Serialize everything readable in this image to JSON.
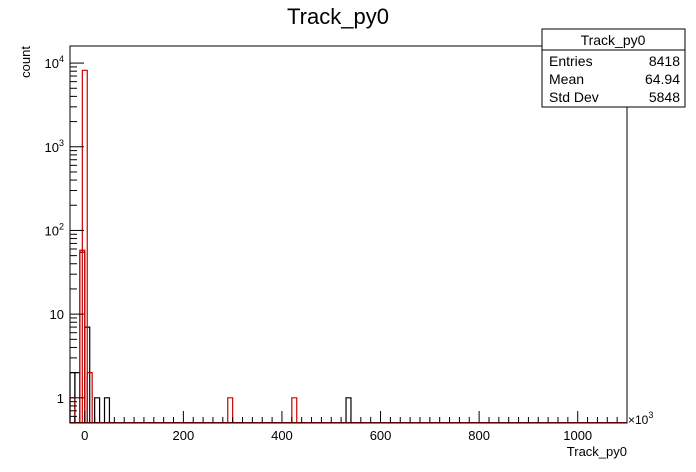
{
  "chart_data": {
    "type": "histogram",
    "title": "Track_py0",
    "xlabel": "Track_py0",
    "ylabel": "count",
    "x_multiplier": "×10",
    "x_multiplier_exp": "3",
    "xlim": [
      -30,
      1100
    ],
    "ylim": [
      0.5,
      16000
    ],
    "yscale": "log",
    "x_ticks": [
      0,
      200,
      400,
      600,
      800,
      1000
    ],
    "y_ticks": [
      {
        "value": 1,
        "label": "1",
        "exp": ""
      },
      {
        "value": 10,
        "label": "10",
        "exp": ""
      },
      {
        "value": 100,
        "label": "10",
        "exp": "2"
      },
      {
        "value": 1000,
        "label": "10",
        "exp": "3"
      },
      {
        "value": 10000,
        "label": "10",
        "exp": "4"
      }
    ],
    "bin_width": 10,
    "series": [
      {
        "color": "#000000",
        "bins": [
          {
            "x": -30,
            "y": 2
          },
          {
            "x": -20,
            "y": 2
          },
          {
            "x": -10,
            "y": 55
          },
          {
            "x": 0,
            "y": 7
          },
          {
            "x": 20,
            "y": 1
          },
          {
            "x": 40,
            "y": 1
          },
          {
            "x": 530,
            "y": 1
          }
        ]
      },
      {
        "color": "#cc0000",
        "bins": [
          {
            "x": -30,
            "y": 1
          },
          {
            "x": -10,
            "y": 58
          },
          {
            "x": -5,
            "y": 8200
          },
          {
            "x": 5,
            "y": 2
          },
          {
            "x": 290,
            "y": 1
          },
          {
            "x": 420,
            "y": 1
          }
        ]
      }
    ],
    "stats_box": {
      "title": "Track_py0",
      "rows": [
        {
          "label": "Entries",
          "value": "8418"
        },
        {
          "label": "Mean",
          "value": "64.94"
        },
        {
          "label": "Std Dev",
          "value": "5848"
        }
      ]
    }
  }
}
